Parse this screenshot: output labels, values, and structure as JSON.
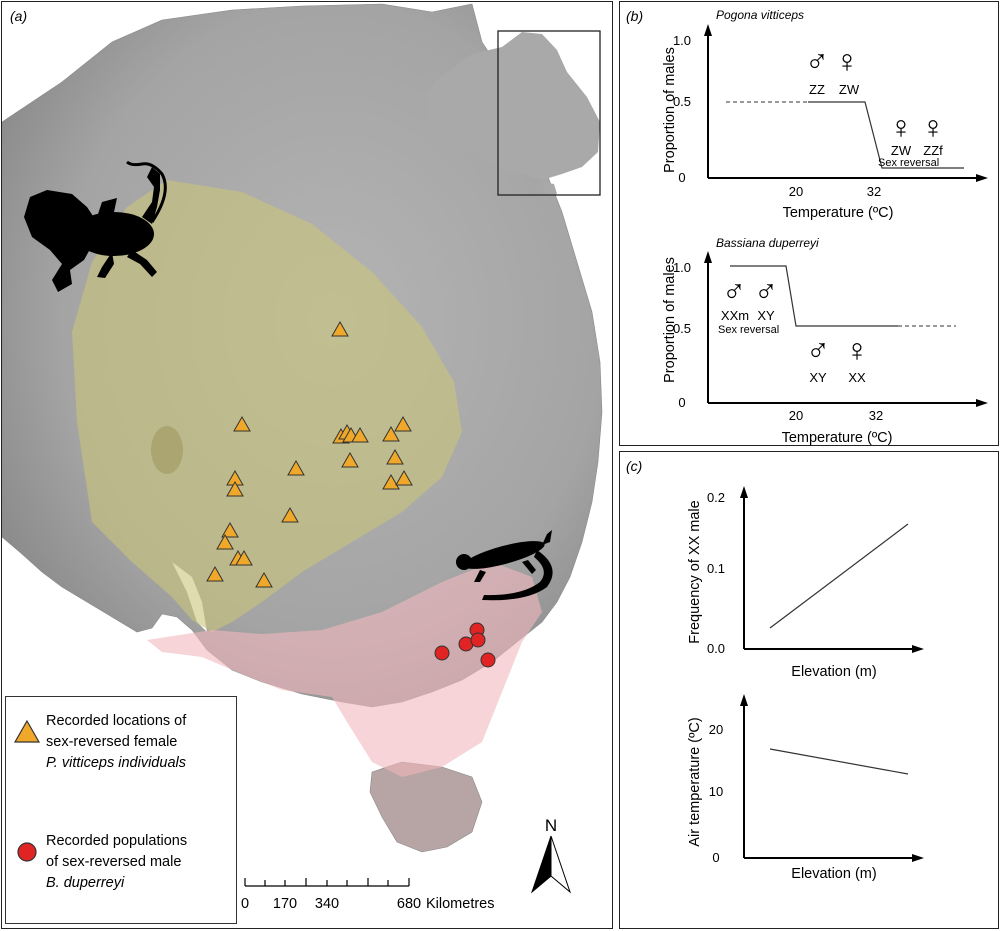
{
  "panel_a": {
    "label": "(a)",
    "legend": {
      "triangle_lines": [
        "Recorded locations of",
        "sex-reversed female",
        "P. vitticeps individuals"
      ],
      "circle_lines": [
        "Recorded populations",
        "of sex-reversed male",
        "B. duperreyi"
      ],
      "triangle_color": "#f0a82a",
      "circle_color": "#e02424"
    },
    "scale": {
      "ticks": [
        "0",
        "170",
        "340",
        "680"
      ],
      "unit": "Kilometres"
    },
    "north": "N",
    "colors": {
      "pogona_range": "#c9c47a",
      "bassiana_range": "#f2b8bc",
      "silhouette": "#000000"
    }
  },
  "panel_b": {
    "label": "(b)",
    "top": {
      "species": "Pogona vitticeps",
      "ylabel": "Proportion of males",
      "xlabel": "Temperature (ºC)",
      "yticks": [
        "1.0",
        "0.5",
        "0"
      ],
      "xticks": [
        "20",
        "32"
      ],
      "genotypes": [
        "ZZ",
        "ZW",
        "ZW",
        "ZZf"
      ],
      "note": "Sex reversal"
    },
    "bottom": {
      "species": "Bassiana duperreyi",
      "ylabel": "Proportion of males",
      "xlabel": "Temperature (ºC)",
      "yticks": [
        "1.0",
        "0.5",
        "0"
      ],
      "xticks": [
        "20",
        "32"
      ],
      "genotypes": [
        "XXm",
        "XY",
        "XY",
        "XX"
      ],
      "note": "Sex reversal"
    }
  },
  "panel_c": {
    "label": "(c)",
    "top": {
      "ylabel": "Frequency of XX male",
      "xlabel": "Elevation (m)",
      "yticks": [
        "0.2",
        "0.1",
        "0.0"
      ]
    },
    "bottom": {
      "ylabel": "Air temperature (ºC)",
      "xlabel": "Elevation (m)",
      "yticks": [
        "20",
        "10",
        "0"
      ]
    }
  },
  "symbols": {
    "male": "♂",
    "female": "♀"
  }
}
